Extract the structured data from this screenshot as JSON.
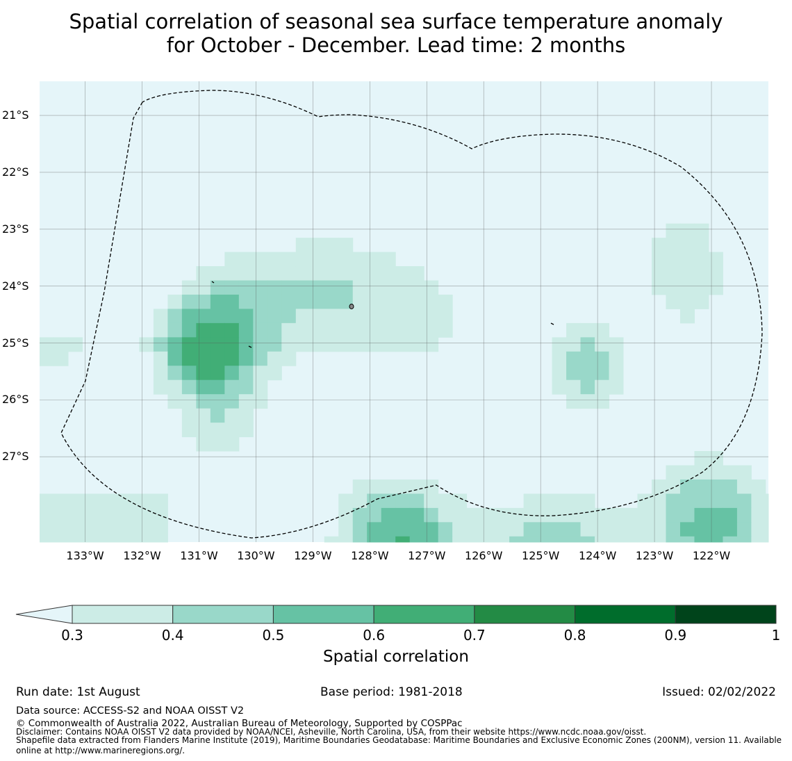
{
  "title": {
    "line1": "Spatial correlation of seasonal sea surface temperature anomaly",
    "line2": "for October - December. Lead time: 2 months"
  },
  "map": {
    "lat_labels": [
      "21°S",
      "22°S",
      "23°S",
      "24°S",
      "25°S",
      "26°S",
      "27°S"
    ],
    "lon_labels": [
      "133°W",
      "132°W",
      "131°W",
      "130°W",
      "129°W",
      "128°W",
      "127°W",
      "126°W",
      "125°W",
      "124°W",
      "123°W",
      "122°W"
    ],
    "lon_values": [
      -133,
      -132,
      -131,
      -130,
      -129,
      -128,
      -127,
      -126,
      -125,
      -124,
      -123,
      -122
    ],
    "lat_values": [
      -21,
      -22,
      -23,
      -24,
      -25,
      -26,
      -27
    ],
    "extent": {
      "lon_min": -133.8,
      "lon_max": -121.0,
      "lat_min": -28.5,
      "lat_max": -20.4
    },
    "background_color": "#e5f5f9",
    "gridlines": true,
    "eez_boundary": "dashed"
  },
  "colorbar": {
    "bounds": [
      0.3,
      0.4,
      0.5,
      0.6,
      0.7,
      0.8,
      0.9,
      1
    ],
    "tick_labels": [
      "0.3",
      "0.4",
      "0.5",
      "0.6",
      "0.7",
      "0.8",
      "0.9",
      "1"
    ],
    "colors": [
      "#ccece6",
      "#99d8c9",
      "#66c2a4",
      "#41ae76",
      "#238b45",
      "#006d2c",
      "#00441b"
    ],
    "under_color": "#e5f5f9",
    "label": "Spatial correlation"
  },
  "footer": {
    "run_date": "Run date: 1st August",
    "base_period": "Base period: 1981-2018",
    "issued": "Issued: 02/02/2022",
    "data_source": "Data source: ACCESS-S2 and NOAA OISST V2",
    "copyright": "© Commonwealth of Australia 2022, Australian Bureau of Meteorology, Supported by COSPPac",
    "disclaimer": "Disclaimer: Contains NOAA OISST V2 data provided by NOAA/NCEI, Asheville, North Carolina, USA, from their website https://www.ncdc.noaa.gov/oisst.",
    "shapefile_line1": "Shapefile data extracted from Flanders Marine Institute (2019), Maritime Boundaries Geodatabase: Maritime Boundaries and Exclusive Economic Zones (200NM), version 11. Available",
    "shapefile_line2": "online at http://www.marineregions.org/."
  }
}
